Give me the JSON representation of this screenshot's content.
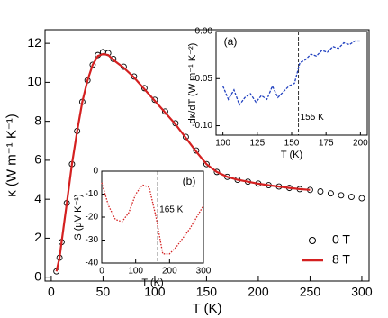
{
  "chart_data": [
    {
      "type": "line",
      "xlabel": "T (K)",
      "ylabel": "κ (W m⁻¹ K⁻¹)",
      "x": [
        5,
        8,
        10,
        15,
        20,
        25,
        30,
        35,
        40,
        45,
        50,
        55,
        60,
        70,
        80,
        90,
        100,
        110,
        120,
        130,
        140,
        150,
        160,
        170,
        180,
        190,
        200,
        210,
        220,
        230,
        240,
        250,
        260,
        270,
        280,
        290,
        300
      ],
      "series": [
        {
          "name": "0 T",
          "color": "#000000",
          "marker": "open-circle",
          "values": [
            0.3,
            1.0,
            1.8,
            3.8,
            5.8,
            7.5,
            9.0,
            10.1,
            10.9,
            11.4,
            11.55,
            11.5,
            11.2,
            10.8,
            10.3,
            9.7,
            9.1,
            8.5,
            7.9,
            7.2,
            6.5,
            5.8,
            5.4,
            5.15,
            5.0,
            4.9,
            4.8,
            4.72,
            4.65,
            4.58,
            4.52,
            4.48,
            4.4,
            4.3,
            4.2,
            4.12,
            4.05
          ]
        },
        {
          "name": "8 T",
          "color": "#d42020",
          "marker": "line",
          "values": [
            0.3,
            1.0,
            1.8,
            3.8,
            5.8,
            7.5,
            9.0,
            10.1,
            10.9,
            11.35,
            11.45,
            11.4,
            11.15,
            10.75,
            10.25,
            9.65,
            9.05,
            8.45,
            7.85,
            7.15,
            6.45,
            5.8,
            5.4,
            5.15,
            5.0,
            4.9,
            4.8,
            4.72,
            4.65,
            4.58,
            4.52,
            4.48,
            null,
            null,
            null,
            null,
            null
          ]
        }
      ],
      "xlim": [
        -6,
        307
      ],
      "xticks": [
        0,
        50,
        100,
        150,
        200,
        250,
        300
      ],
      "ylim": [
        -0.2,
        12.7
      ],
      "yticks": [
        0,
        2,
        4,
        6,
        8,
        10,
        12
      ],
      "legend": "lower right"
    },
    {
      "type": "line",
      "xlabel": "T (K)",
      "ylabel": "dκ/dT (W m⁻¹ K⁻²)",
      "panel_label": "(a)",
      "panel_label_corner": "upper left",
      "x": [
        100,
        104,
        108,
        112,
        116,
        120,
        124,
        128,
        132,
        136,
        140,
        144,
        148,
        152,
        156,
        160,
        164,
        168,
        172,
        176,
        180,
        184,
        188,
        192,
        196,
        200
      ],
      "series": [
        {
          "color": "#1f3fbf",
          "marker": "dashed-line",
          "values": [
            -0.058,
            -0.072,
            -0.062,
            -0.078,
            -0.07,
            -0.066,
            -0.075,
            -0.068,
            -0.072,
            -0.058,
            -0.07,
            -0.064,
            -0.058,
            -0.055,
            -0.033,
            -0.03,
            -0.024,
            -0.026,
            -0.02,
            -0.022,
            -0.016,
            -0.018,
            -0.012,
            -0.014,
            -0.01,
            -0.01
          ]
        }
      ],
      "annotations": [
        {
          "text": "155 K",
          "x": 155
        }
      ],
      "xlim": [
        95,
        205
      ],
      "xticks": [
        100,
        125,
        150,
        175,
        200
      ],
      "ylim": [
        -0.11,
        0
      ],
      "yticks": [
        {
          "value": 0,
          "label": "0.00"
        },
        -0.05,
        {
          "value": -0.1,
          "label": "-0.10"
        }
      ]
    },
    {
      "type": "line",
      "xlabel": "T (K)",
      "ylabel": "S (μV K⁻¹)",
      "panel_label": "(b)",
      "panel_label_corner": "upper right",
      "x": [
        0,
        20,
        40,
        60,
        80,
        100,
        120,
        140,
        160,
        180,
        200,
        220,
        240,
        260,
        280,
        300
      ],
      "series": [
        {
          "color": "#d42020",
          "marker": "dotted-line",
          "values": [
            -5,
            -15,
            -21,
            -22,
            -18,
            -10,
            -6,
            -7,
            -20,
            -36,
            -36,
            -33,
            -29,
            -25,
            -20,
            -15
          ]
        }
      ],
      "annotations": [
        {
          "text": "165 K",
          "x": 165
        }
      ],
      "xlim": [
        0,
        300
      ],
      "xticks": [
        0,
        100,
        200,
        300
      ],
      "ylim": [
        -40,
        0
      ],
      "yticks": [
        0,
        -10,
        -20,
        -30,
        -40
      ]
    }
  ]
}
